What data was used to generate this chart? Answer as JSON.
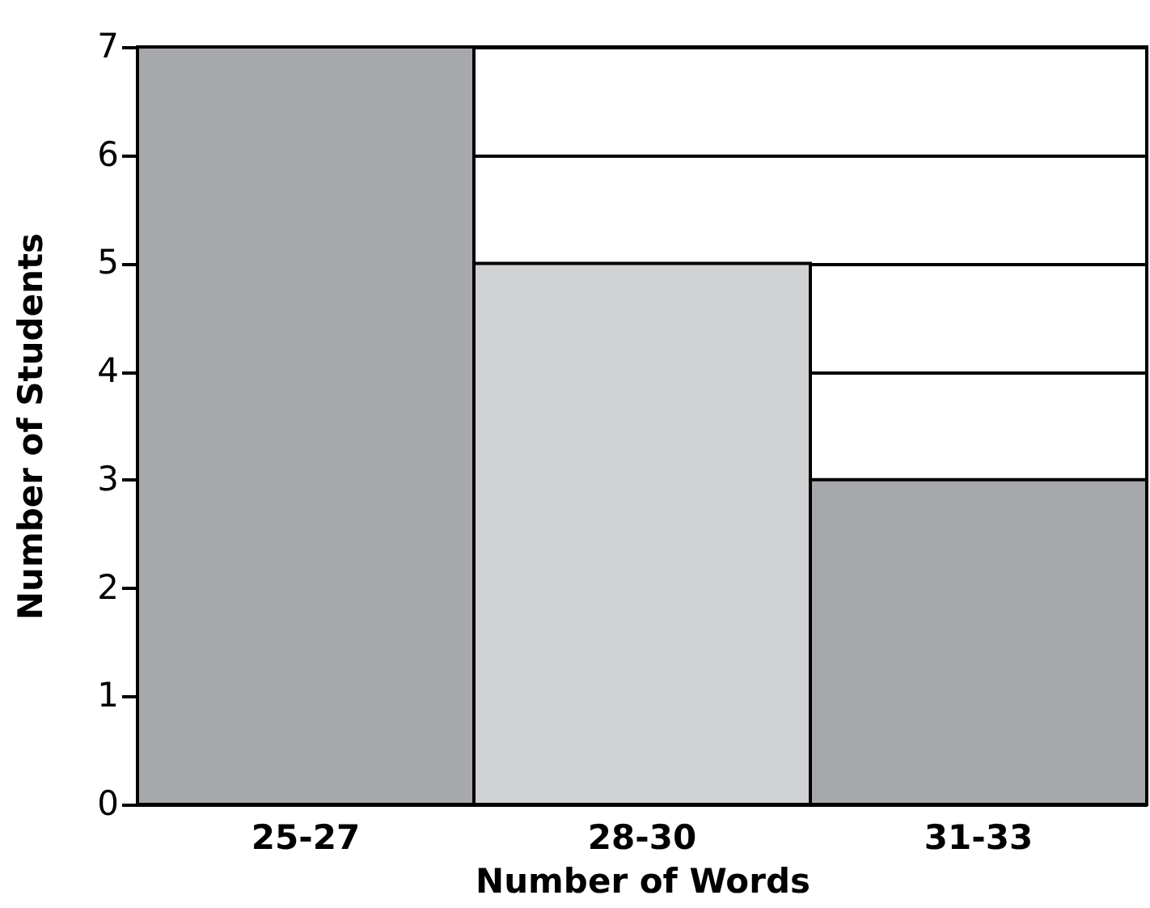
{
  "chart_data": {
    "type": "bar",
    "xlabel": "Number of Words",
    "ylabel": "Number of Students",
    "categories": [
      "25-27",
      "28-30",
      "31-33"
    ],
    "values": [
      7,
      5,
      3
    ],
    "colors": [
      "#a7a8ab",
      "#d1d2d4",
      "#a7a8ab"
    ],
    "ylim": [
      0,
      7
    ],
    "yticks": [
      0,
      1,
      2,
      3,
      4,
      5,
      6,
      7
    ],
    "grid": "y"
  }
}
